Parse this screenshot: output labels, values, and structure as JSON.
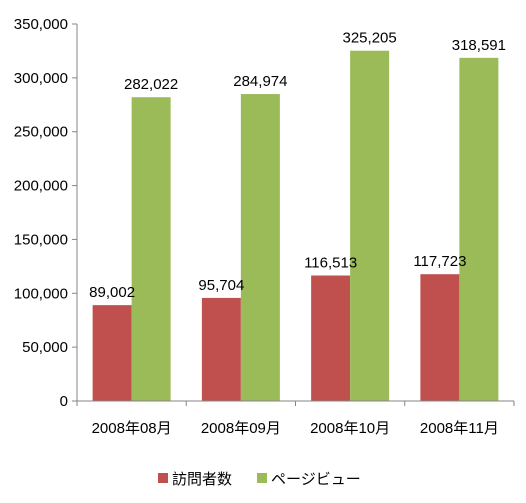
{
  "chart_data": {
    "type": "bar",
    "categories": [
      "2008年08月",
      "2008年09月",
      "2008年10月",
      "2008年11月"
    ],
    "series": [
      {
        "name": "訪問者数",
        "values": [
          89002,
          95704,
          116513,
          117723
        ],
        "labels": [
          "89,002",
          "95,704",
          "116,513",
          "117,723"
        ],
        "color": "#c0504d"
      },
      {
        "name": "ページビュー",
        "values": [
          282022,
          284974,
          325205,
          318591
        ],
        "labels": [
          "282,022",
          "284,974",
          "325,205",
          "318,591"
        ],
        "color": "#9bbb59"
      }
    ],
    "ylim": [
      0,
      350000
    ],
    "yticks": [
      0,
      50000,
      100000,
      150000,
      200000,
      250000,
      300000,
      350000
    ],
    "ytick_labels": [
      "0",
      "50,000",
      "100,000",
      "150,000",
      "200,000",
      "250,000",
      "300,000",
      "350,000"
    ],
    "grid": false,
    "legend": "bottom",
    "title": "",
    "xlabel": "",
    "ylabel": ""
  }
}
